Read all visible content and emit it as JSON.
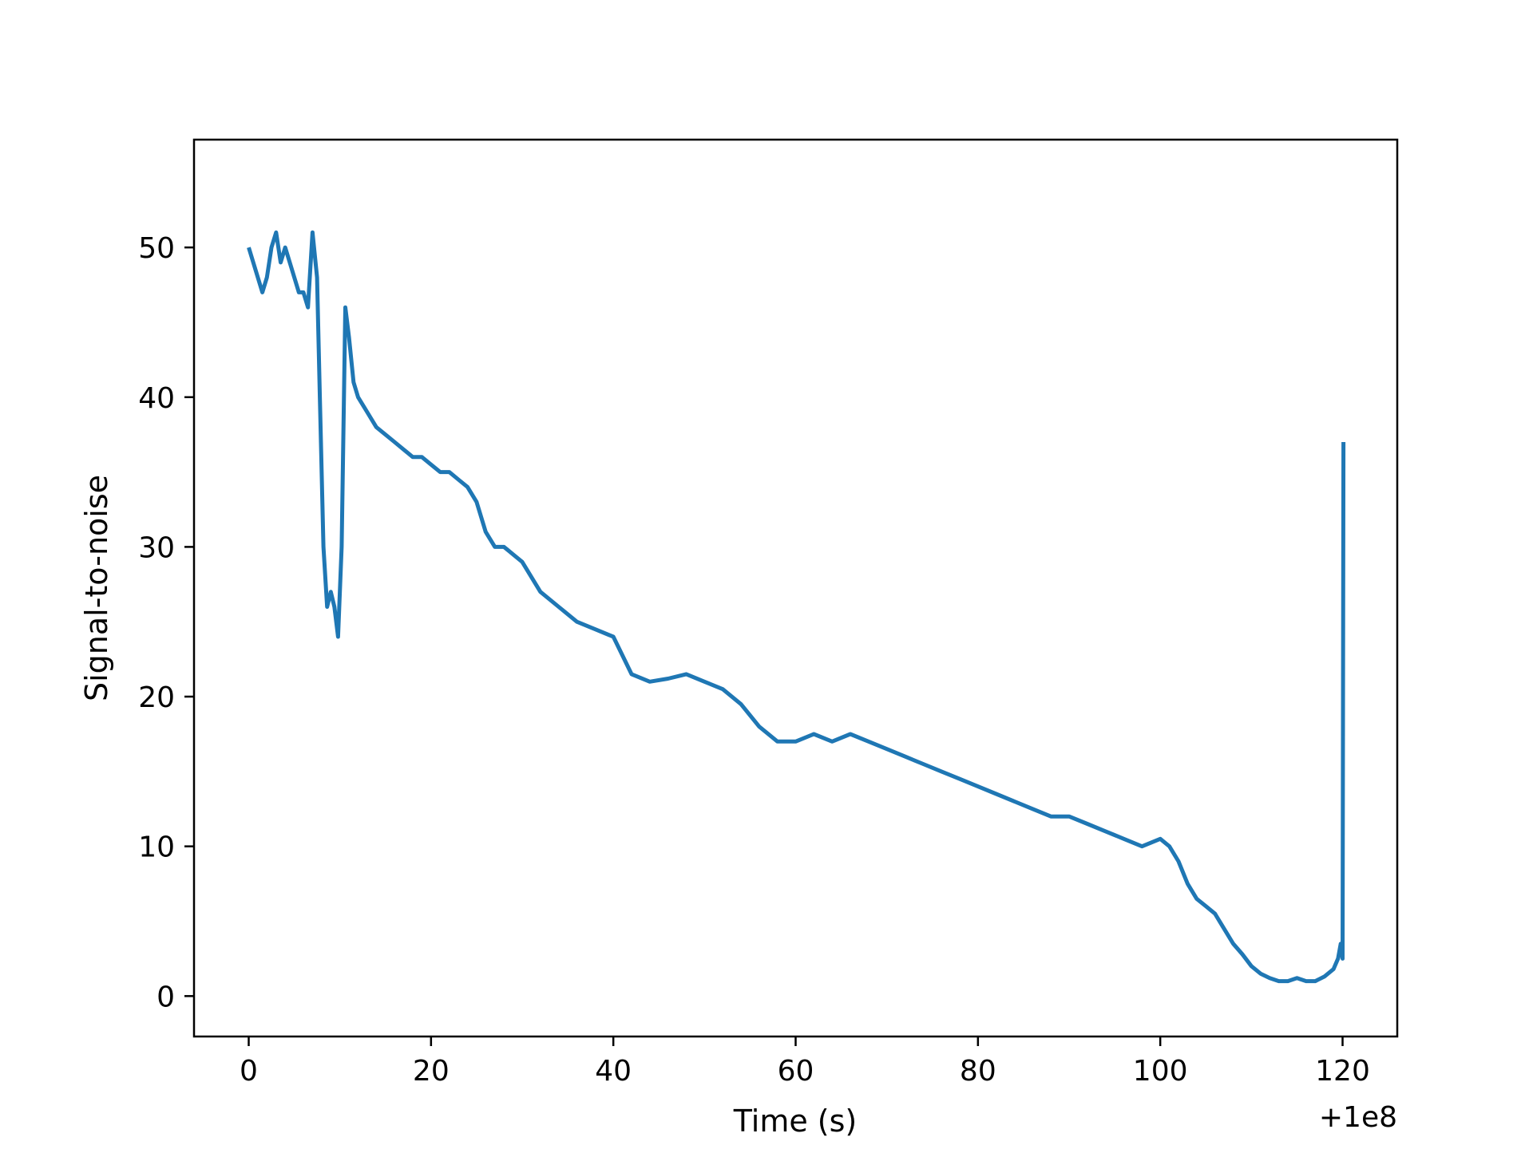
{
  "chart_data": {
    "type": "line",
    "title": "",
    "xlabel": "Time (s)",
    "ylabel": "Signal-to-noise",
    "x_offset_label": "+1e8",
    "xlim": [
      -6,
      126
    ],
    "ylim": [
      -2.7,
      57.2
    ],
    "xticks": [
      0,
      20,
      40,
      60,
      80,
      100,
      120
    ],
    "yticks": [
      0,
      10,
      20,
      30,
      40,
      50
    ],
    "grid": false,
    "legend": "none",
    "colors": {
      "line": "#1f77b4",
      "axes": "#000000",
      "background": "#ffffff"
    },
    "series": [
      {
        "color": "#1f77b4",
        "x": [
          0,
          0.5,
          1,
          1.5,
          2,
          2.5,
          3,
          3.5,
          4,
          4.5,
          5,
          5.5,
          6,
          6.5,
          7,
          7.5,
          7.8,
          8.2,
          8.6,
          9.0,
          9.4,
          9.8,
          10.2,
          10.6,
          11,
          11.5,
          12,
          13,
          14,
          15,
          16,
          17,
          18,
          19,
          20,
          21,
          22,
          23,
          24,
          25,
          26,
          27,
          28,
          29,
          30,
          32,
          34,
          36,
          38,
          40,
          42,
          44,
          46,
          48,
          50,
          52,
          54,
          56,
          58,
          60,
          62,
          64,
          66,
          68,
          70,
          72,
          74,
          76,
          78,
          80,
          82,
          84,
          86,
          88,
          90,
          92,
          94,
          96,
          98,
          100,
          101,
          102,
          103,
          104,
          105,
          106,
          107,
          108,
          109,
          110,
          111,
          112,
          113,
          114,
          115,
          116,
          117,
          118,
          119,
          119.5,
          119.8,
          120,
          120.1
        ],
        "y": [
          50,
          49,
          48,
          47,
          48,
          50,
          51,
          49,
          50,
          49,
          48,
          47,
          47,
          46,
          51,
          48,
          40,
          30,
          26,
          27,
          26,
          24,
          30,
          46,
          44,
          41,
          40,
          39,
          38,
          37.5,
          37,
          36.5,
          36,
          36,
          35.5,
          35,
          35,
          34.5,
          34,
          33,
          31,
          30,
          30,
          29.5,
          29,
          27,
          26,
          25,
          24.5,
          24,
          21.5,
          21,
          21.2,
          21.5,
          21,
          20.5,
          19.5,
          18,
          17,
          17,
          17.5,
          17,
          17.5,
          17,
          16.5,
          16,
          15.5,
          15,
          14.5,
          14,
          13.5,
          13,
          12.5,
          12,
          12,
          11.5,
          11,
          10.5,
          10,
          10.5,
          10,
          9,
          7.5,
          6.5,
          6,
          5.5,
          4.5,
          3.5,
          2.8,
          2,
          1.5,
          1.2,
          1,
          1,
          1.2,
          1,
          1,
          1.3,
          1.8,
          2.5,
          3.5,
          2.5,
          37
        ]
      }
    ]
  }
}
